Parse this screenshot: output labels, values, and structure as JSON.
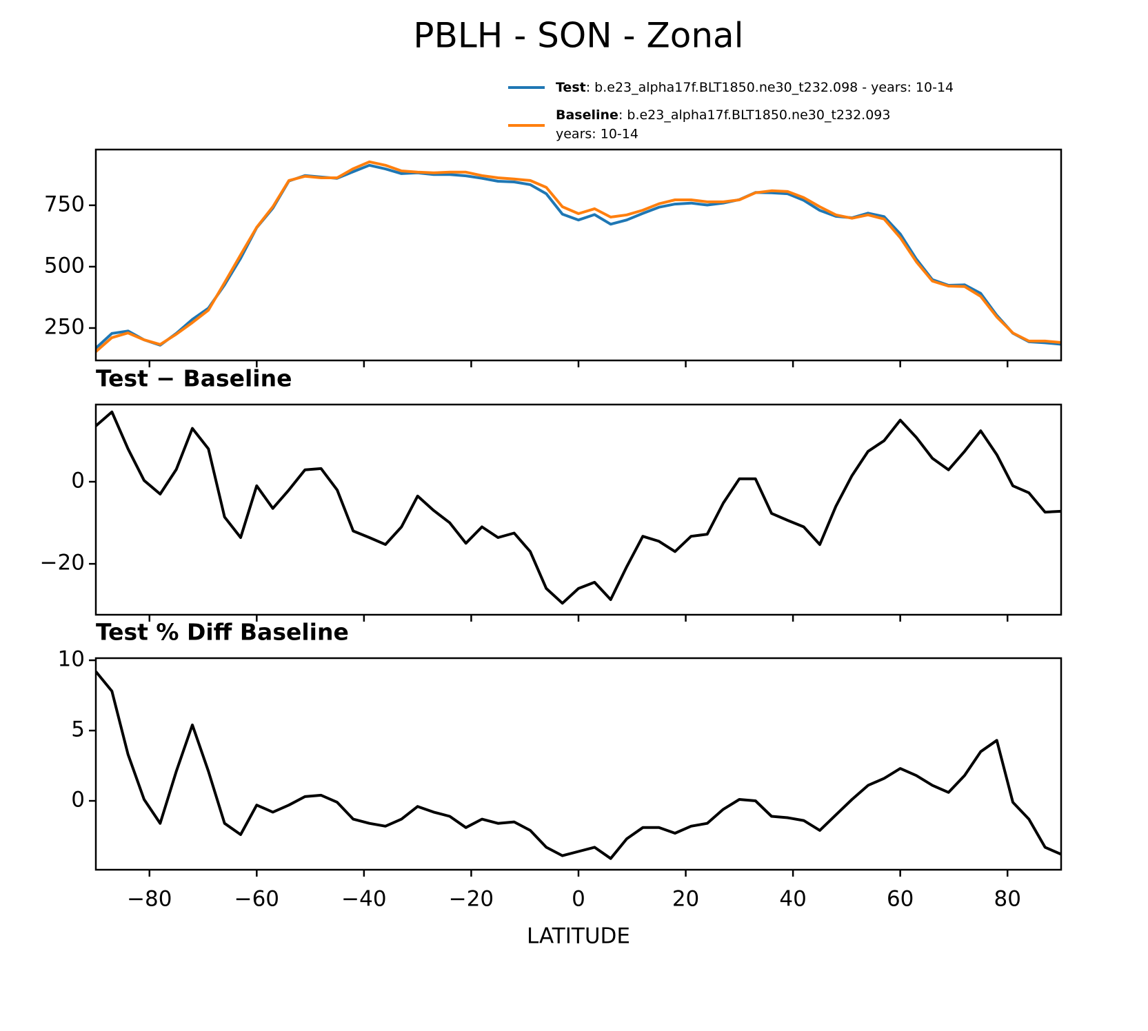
{
  "chart_data": [
    {
      "type": "line",
      "title": "PBLH - SON - Zonal",
      "x": [
        -90,
        -87,
        -84,
        -81,
        -78,
        -75,
        -72,
        -69,
        -66,
        -63,
        -60,
        -57,
        -54,
        -51,
        -48,
        -45,
        -42,
        -39,
        -36,
        -33,
        -30,
        -27,
        -24,
        -21,
        -18,
        -15,
        -12,
        -9,
        -6,
        -3,
        0,
        3,
        6,
        9,
        12,
        15,
        18,
        21,
        24,
        27,
        30,
        33,
        36,
        39,
        42,
        45,
        48,
        51,
        54,
        57,
        60,
        63,
        66,
        69,
        72,
        75,
        78,
        81,
        84,
        87,
        90
      ],
      "series": [
        {
          "name": "Test",
          "description": [
            ": b.e23_alpha17f.BLT1850.ne30_t232.098 - years: 10-14"
          ],
          "color": "#1f77b4",
          "values": [
            168,
            228,
            238,
            202,
            180,
            228,
            285,
            331,
            426,
            534,
            659,
            738,
            849,
            871,
            865,
            860,
            887,
            913,
            898,
            879,
            882,
            875,
            875,
            870,
            860,
            848,
            845,
            834,
            797,
            714,
            690,
            712,
            673,
            690,
            717,
            742,
            755,
            759,
            751,
            759,
            773,
            802,
            801,
            797,
            770,
            729,
            705,
            699,
            718,
            704,
            633,
            531,
            447,
            424,
            426,
            391,
            302,
            229,
            194,
            190,
            184
          ]
        },
        {
          "name": "Baseline",
          "description": [
            ": b.e23_alpha17f.BLT1850.ne30_t232.093",
            "years: 10-14"
          ],
          "color": "#ff7f0e",
          "values": [
            154,
            211,
            230,
            202,
            183,
            225,
            272,
            323,
            435,
            548,
            660,
            744,
            851,
            868,
            862,
            862,
            899,
            927,
            913,
            890,
            885,
            882,
            885,
            885,
            871,
            862,
            857,
            851,
            823,
            744,
            716,
            736,
            702,
            711,
            730,
            756,
            772,
            772,
            764,
            764,
            772,
            801,
            809,
            806,
            781,
            744,
            711,
            697,
            711,
            694,
            618,
            520,
            441,
            421,
            419,
            379,
            295,
            230,
            197,
            197,
            191
          ]
        }
      ],
      "xlim": [
        -90,
        90
      ],
      "xticks": [
        -80,
        -60,
        -40,
        -20,
        0,
        20,
        40,
        60,
        80
      ],
      "ylim": [
        118,
        977
      ],
      "yticks": [
        250,
        500,
        750
      ]
    },
    {
      "type": "line",
      "title": "Test − Baseline",
      "x": [
        -90,
        -87,
        -84,
        -81,
        -78,
        -75,
        -72,
        -69,
        -66,
        -63,
        -60,
        -57,
        -54,
        -51,
        -48,
        -45,
        -42,
        -39,
        -36,
        -33,
        -30,
        -27,
        -24,
        -21,
        -18,
        -15,
        -12,
        -9,
        -6,
        -3,
        0,
        3,
        6,
        9,
        12,
        15,
        18,
        21,
        24,
        27,
        30,
        33,
        36,
        39,
        42,
        45,
        48,
        51,
        54,
        57,
        60,
        63,
        66,
        69,
        72,
        75,
        78,
        81,
        84,
        87,
        90
      ],
      "series": [
        {
          "color": "#000000",
          "values": [
            13.6,
            17,
            8,
            0.3,
            -3,
            3,
            13,
            8,
            -8.6,
            -13.6,
            -1,
            -6.5,
            -2,
            2.9,
            3.2,
            -2,
            -12,
            -13.6,
            -15.3,
            -11,
            -3.5,
            -7,
            -10,
            -15,
            -11,
            -13.6,
            -12.5,
            -17,
            -26,
            -29.6,
            -26,
            -24.5,
            -28.7,
            -20.7,
            -13.3,
            -14.5,
            -17,
            -13.3,
            -12.8,
            -5.2,
            0.7,
            0.7,
            -7.7,
            -9.4,
            -11,
            -15.3,
            -6,
            1.5,
            7.4,
            10,
            15,
            10.8,
            5.7,
            2.9,
            7.4,
            12.4,
            6.6,
            -1,
            -2.7,
            -7.4,
            -7.2
          ]
        }
      ],
      "xlim": [
        -90,
        90
      ],
      "xticks": [
        -80,
        -60,
        -40,
        -20,
        0,
        20,
        40,
        60,
        80
      ],
      "ylim": [
        -32.4,
        18.8
      ],
      "yticks": [
        {
          "value": -20,
          "label": "−20"
        },
        0
      ]
    },
    {
      "type": "line",
      "title": "Test % Diff Baseline",
      "xlabel": "LATITUDE",
      "x": [
        -90,
        -87,
        -84,
        -81,
        -78,
        -75,
        -72,
        -69,
        -66,
        -63,
        -60,
        -57,
        -54,
        -51,
        -48,
        -45,
        -42,
        -39,
        -36,
        -33,
        -30,
        -27,
        -24,
        -21,
        -18,
        -15,
        -12,
        -9,
        -6,
        -3,
        0,
        3,
        6,
        9,
        12,
        15,
        18,
        21,
        24,
        27,
        30,
        33,
        36,
        39,
        42,
        45,
        48,
        51,
        54,
        57,
        60,
        63,
        66,
        69,
        72,
        75,
        78,
        81,
        84,
        87,
        90
      ],
      "series": [
        {
          "color": "#000000",
          "values": [
            9.2,
            7.8,
            3.3,
            0.1,
            -1.6,
            2.1,
            5.4,
            2.1,
            -1.6,
            -2.4,
            -0.3,
            -0.8,
            -0.3,
            0.3,
            0.4,
            -0.1,
            -1.3,
            -1.6,
            -1.8,
            -1.3,
            -0.4,
            -0.8,
            -1.1,
            -1.9,
            -1.3,
            -1.6,
            -1.5,
            -2.1,
            -3.3,
            -3.9,
            -3.6,
            -3.3,
            -4.1,
            -2.7,
            -1.9,
            -1.9,
            -2.3,
            -1.8,
            -1.6,
            -0.6,
            0.1,
            0,
            -1.1,
            -1.2,
            -1.4,
            -2.1,
            -1,
            0.1,
            1.1,
            1.6,
            2.3,
            1.8,
            1.1,
            0.6,
            1.8,
            3.5,
            4.3,
            -0.1,
            -1.3,
            -3.3,
            -3.8
          ]
        }
      ],
      "xlim": [
        -90,
        90
      ],
      "xticks": [
        {
          "value": -80,
          "label": "−80"
        },
        {
          "value": -60,
          "label": "−60"
        },
        {
          "value": -40,
          "label": "−40"
        },
        {
          "value": -20,
          "label": "−20"
        },
        0,
        20,
        40,
        60,
        80
      ],
      "ylim": [
        -4.9,
        10.15
      ],
      "yticks": [
        0,
        5,
        10
      ]
    }
  ]
}
